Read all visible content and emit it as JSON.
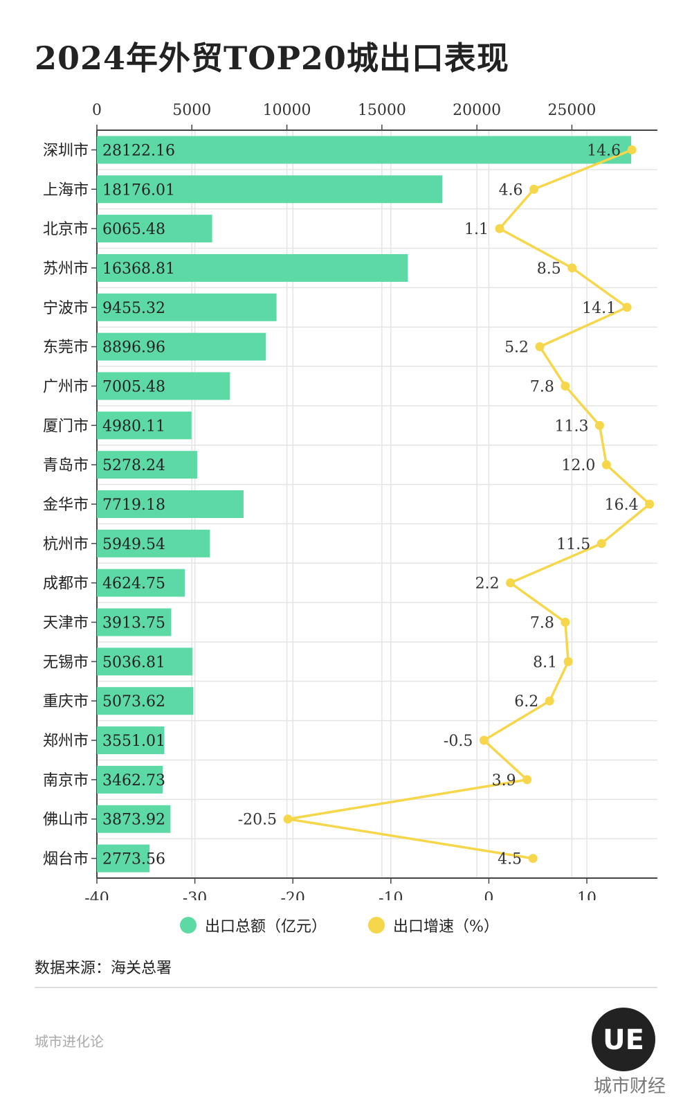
{
  "title": "2024年外贸TOP20城出口表现",
  "source": "数据来源：海关总署",
  "brand": "城市进化论",
  "logo_text": "UE",
  "corner_text": "城市财经",
  "colors": {
    "bar": "#5dd9a6",
    "line": "#f6d64a"
  },
  "chart_data": {
    "type": "bar",
    "categories": [
      "深圳市",
      "上海市",
      "北京市",
      "苏州市",
      "宁波市",
      "东莞市",
      "广州市",
      "厦门市",
      "青岛市",
      "金华市",
      "杭州市",
      "成都市",
      "天津市",
      "无锡市",
      "重庆市",
      "郑州市",
      "南京市",
      "佛山市",
      "烟台市"
    ],
    "series": [
      {
        "name": "出口总额（亿元）",
        "type": "bar",
        "values": [
          28122.16,
          18176.01,
          6065.48,
          16368.81,
          9455.32,
          8896.96,
          7005.48,
          4980.11,
          5278.24,
          7719.18,
          5949.54,
          4624.75,
          3913.75,
          5036.81,
          5073.62,
          3551.01,
          3462.73,
          3873.92,
          2773.56
        ]
      },
      {
        "name": "出口增速（%）",
        "type": "line",
        "values": [
          14.6,
          4.6,
          1.1,
          8.5,
          14.1,
          5.2,
          7.8,
          11.3,
          12.0,
          16.4,
          11.5,
          2.2,
          7.8,
          8.1,
          6.2,
          -0.5,
          3.9,
          -20.5,
          4.5
        ]
      }
    ],
    "top_axis": {
      "ticks": [
        0,
        5000,
        10000,
        15000,
        20000,
        25000
      ],
      "range": [
        0,
        29500
      ]
    },
    "bottom_axis": {
      "ticks": [
        -40,
        -30,
        -20,
        -10,
        0,
        10
      ],
      "range": [
        -40,
        17.2
      ]
    },
    "grid": true,
    "legend_position": "bottom"
  }
}
